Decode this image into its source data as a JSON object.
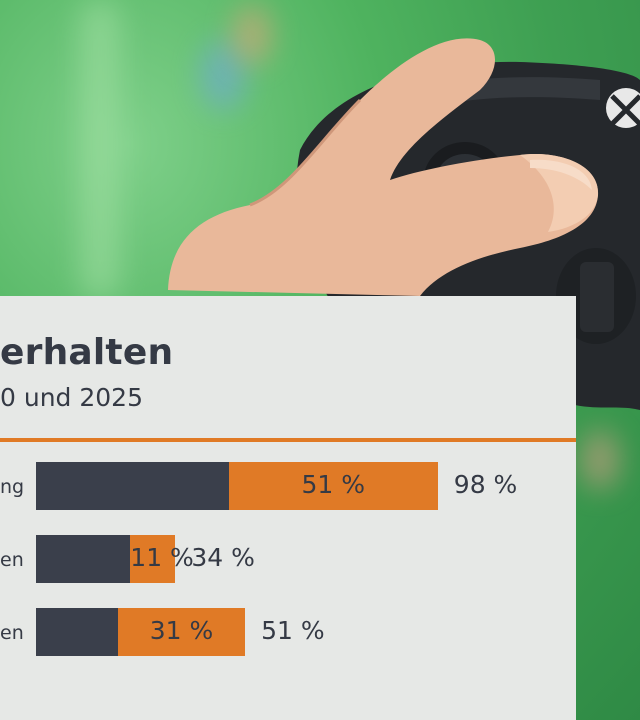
{
  "title": "erhalten",
  "subtitle": "0 und 2025",
  "chart_data": {
    "type": "bar",
    "stacked": true,
    "orientation": "horizontal",
    "categories": [
      "ng",
      "en",
      "en"
    ],
    "series": [
      {
        "values": [
          51,
          11,
          31
        ],
        "labels": [
          "51 %",
          "11 %",
          "31 %"
        ],
        "color": "#e07a26"
      },
      {
        "values": [
          47,
          23,
          20
        ],
        "color": "#3a3f4b"
      }
    ],
    "totals": [
      98,
      34,
      51
    ],
    "total_labels": [
      "98 %",
      "34 %",
      "51 %"
    ],
    "xlim": [
      0,
      100
    ]
  }
}
